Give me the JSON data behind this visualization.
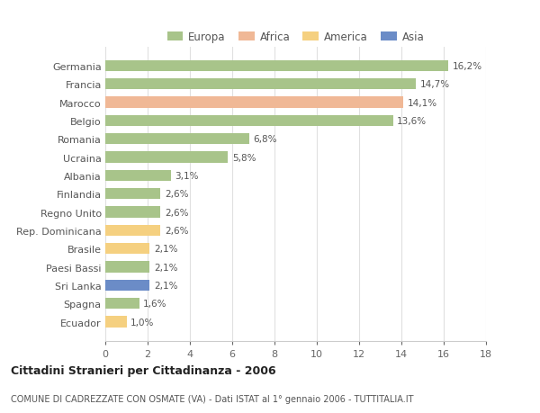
{
  "countries": [
    "Germania",
    "Francia",
    "Marocco",
    "Belgio",
    "Romania",
    "Ucraina",
    "Albania",
    "Finlandia",
    "Regno Unito",
    "Rep. Dominicana",
    "Brasile",
    "Paesi Bassi",
    "Sri Lanka",
    "Spagna",
    "Ecuador"
  ],
  "values": [
    16.2,
    14.7,
    14.1,
    13.6,
    6.8,
    5.8,
    3.1,
    2.6,
    2.6,
    2.6,
    2.1,
    2.1,
    2.1,
    1.6,
    1.0
  ],
  "labels": [
    "16,2%",
    "14,7%",
    "14,1%",
    "13,6%",
    "6,8%",
    "5,8%",
    "3,1%",
    "2,6%",
    "2,6%",
    "2,6%",
    "2,1%",
    "2,1%",
    "2,1%",
    "1,6%",
    "1,0%"
  ],
  "colors": [
    "#a8c48a",
    "#a8c48a",
    "#f0b896",
    "#a8c48a",
    "#a8c48a",
    "#a8c48a",
    "#a8c48a",
    "#a8c48a",
    "#a8c48a",
    "#f5d080",
    "#f5d080",
    "#a8c48a",
    "#6b8cc7",
    "#a8c48a",
    "#f5d080"
  ],
  "legend_labels": [
    "Europa",
    "Africa",
    "America",
    "Asia"
  ],
  "legend_colors": [
    "#a8c48a",
    "#f0b896",
    "#f5d080",
    "#6b8cc7"
  ],
  "title_bold": "Cittadini Stranieri per Cittadinanza - 2006",
  "subtitle": "COMUNE DI CADREZZATE CON OSMATE (VA) - Dati ISTAT al 1° gennaio 2006 - TUTTITALIA.IT",
  "xlim": [
    0,
    18
  ],
  "xticks": [
    0,
    2,
    4,
    6,
    8,
    10,
    12,
    14,
    16,
    18
  ],
  "background_color": "#ffffff",
  "grid_color": "#e0e0e0"
}
